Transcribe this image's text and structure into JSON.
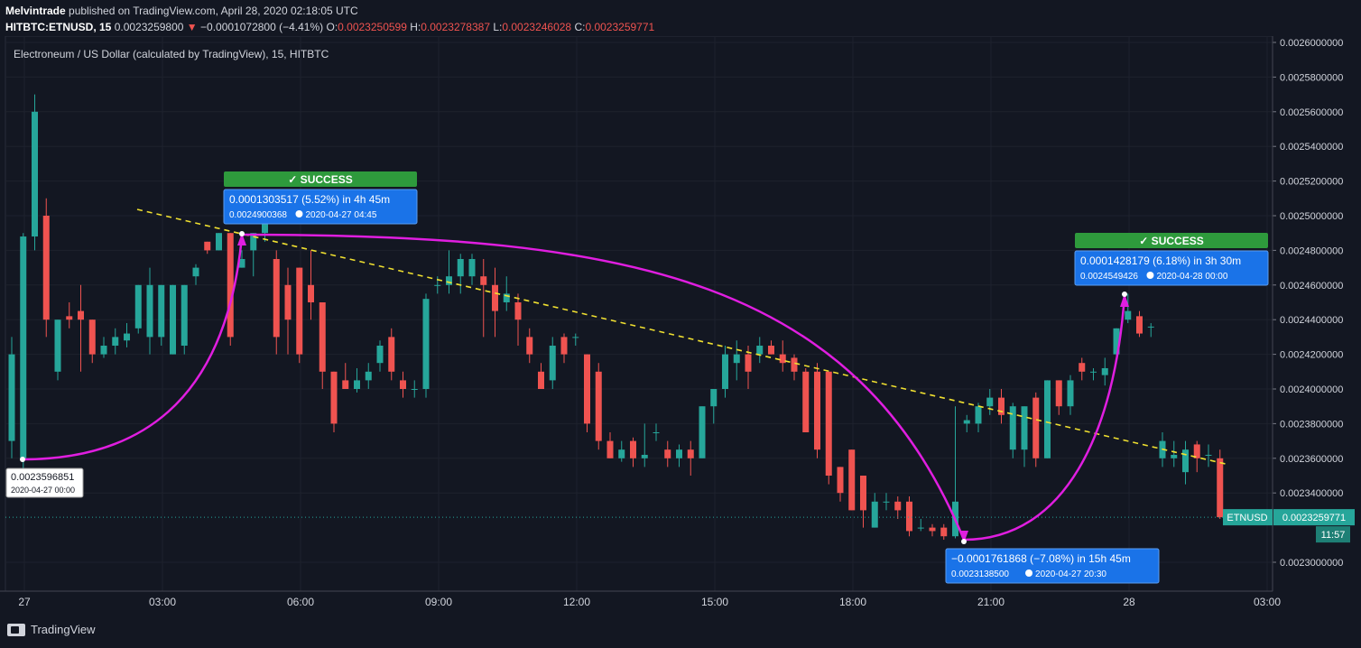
{
  "header": {
    "publisher": "Melvintrade",
    "published_text": " published on TradingView.com, April 28, 2020 02:18:05 UTC",
    "symbol": "HITBTC:ETNUSD, 15",
    "last": "0.0023259800",
    "change_arrow": "▼",
    "change": "−0.0001072800 (−4.41%)",
    "o_label": "O:",
    "o_value": "0.0023250599",
    "h_label": "H:",
    "h_value": "0.0023278387",
    "l_label": "L:",
    "l_value": "0.0023246028",
    "c_label": "C:",
    "c_value": "0.0023259771"
  },
  "chart_title": "Electroneum / US Dollar (calculated by TradingView), 15, HITBTC",
  "footer": {
    "logo_text": "TradingView"
  },
  "colors": {
    "background": "#131722",
    "up": "#26a69a",
    "down": "#ef5350",
    "curve": "#e01ee0",
    "trend": "#f0e030",
    "success": "#2e9a3c",
    "label_box": "#1a73e8"
  },
  "chart_data": {
    "type": "candlestick",
    "title": "Electroneum / US Dollar (calculated by TradingView), 15, HITBTC",
    "ylim": [
      0.00229,
      0.00261
    ],
    "y_ticks": [
      "0.0026000000",
      "0.0025800000",
      "0.0025600000",
      "0.0025400000",
      "0.0025200000",
      "0.0025000000",
      "0.0024800000",
      "0.0024600000",
      "0.0024400000",
      "0.0024200000",
      "0.0024000000",
      "0.0023800000",
      "0.0023600000",
      "0.0023400000",
      "0.0023000000"
    ],
    "y_tick_values": [
      0.0026,
      0.00258,
      0.00256,
      0.00254,
      0.00252,
      0.0025,
      0.00248,
      0.00246,
      0.00244,
      0.00242,
      0.0024,
      0.00238,
      0.00236,
      0.00234,
      0.0023
    ],
    "x_ticks": [
      "27",
      "03:00",
      "06:00",
      "09:00",
      "12:00",
      "15:00",
      "18:00",
      "21:00",
      "28",
      "03:00"
    ],
    "x_tick_hours": [
      0,
      3,
      6,
      9,
      12,
      15,
      18,
      21,
      24,
      27
    ],
    "last_price": {
      "label": "ETNUSD",
      "value": "0.0023259771",
      "price": 0.0023259771,
      "countdown": "11:57"
    },
    "candles": [
      [
        0.00237,
        0.00242,
        0.00243,
        0.00236
      ],
      [
        0.00236,
        0.002488,
        0.00249,
        0.00235
      ],
      [
        0.002488,
        0.00256,
        0.00257,
        0.00248
      ],
      [
        0.0025,
        0.00244,
        0.00251,
        0.00243
      ],
      [
        0.00241,
        0.00244,
        0.00244,
        0.002405
      ],
      [
        0.002442,
        0.00244,
        0.00245,
        0.002435
      ],
      [
        0.002445,
        0.00244,
        0.00246,
        0.00241
      ],
      [
        0.00244,
        0.00242,
        0.00244,
        0.002415
      ],
      [
        0.00242,
        0.002425,
        0.00243,
        0.002418
      ],
      [
        0.002425,
        0.00243,
        0.002435,
        0.00242
      ],
      [
        0.002428,
        0.002432,
        0.002438,
        0.002424
      ],
      [
        0.002435,
        0.00246,
        0.00246,
        0.002432
      ],
      [
        0.00243,
        0.00246,
        0.00247,
        0.00242
      ],
      [
        0.00243,
        0.00246,
        0.00246,
        0.002425
      ],
      [
        0.00242,
        0.00246,
        0.00246,
        0.00242
      ],
      [
        0.002425,
        0.00246,
        0.00246,
        0.00242
      ],
      [
        0.002465,
        0.00247,
        0.002472,
        0.00246
      ],
      [
        0.002485,
        0.00248,
        0.002485,
        0.002478
      ],
      [
        0.00248,
        0.00249,
        0.00249,
        0.00248
      ],
      [
        0.00249,
        0.00243,
        0.00249,
        0.002425
      ],
      [
        0.00247,
        0.002475,
        0.00248,
        0.00247
      ],
      [
        0.00248,
        0.00249,
        0.00249,
        0.002465
      ],
      [
        0.00249,
        0.0025,
        0.0025,
        0.002485
      ],
      [
        0.002475,
        0.00243,
        0.00248,
        0.00242
      ],
      [
        0.00246,
        0.00244,
        0.00247,
        0.00242
      ],
      [
        0.00247,
        0.00242,
        0.00247,
        0.002415
      ],
      [
        0.00246,
        0.00245,
        0.00248,
        0.00244
      ],
      [
        0.00245,
        0.00241,
        0.00245,
        0.0024
      ],
      [
        0.00241,
        0.00238,
        0.00241,
        0.002375
      ],
      [
        0.002405,
        0.0024,
        0.002415,
        0.0024
      ],
      [
        0.0024,
        0.002405,
        0.002412,
        0.002398
      ],
      [
        0.002405,
        0.00241,
        0.002415,
        0.0024
      ],
      [
        0.002415,
        0.002425,
        0.002428,
        0.00241
      ],
      [
        0.00243,
        0.00241,
        0.002435,
        0.002405
      ],
      [
        0.002405,
        0.0024,
        0.00241,
        0.002395
      ],
      [
        0.0024,
        0.0024,
        0.002405,
        0.002395
      ],
      [
        0.0024,
        0.002452,
        0.002455,
        0.002395
      ],
      [
        0.00246,
        0.00246,
        0.002465,
        0.002455
      ],
      [
        0.00246,
        0.002465,
        0.00248,
        0.002455
      ],
      [
        0.002465,
        0.002475,
        0.002478,
        0.002455
      ],
      [
        0.002465,
        0.002475,
        0.002478,
        0.00246
      ],
      [
        0.002465,
        0.00246,
        0.002475,
        0.00243
      ],
      [
        0.00246,
        0.002445,
        0.00247,
        0.00243
      ],
      [
        0.00245,
        0.002455,
        0.002465,
        0.002445
      ],
      [
        0.00245,
        0.00244,
        0.002455,
        0.002425
      ],
      [
        0.00243,
        0.00242,
        0.002435,
        0.002415
      ],
      [
        0.00241,
        0.0024,
        0.002415,
        0.0024
      ],
      [
        0.002405,
        0.002425,
        0.00243,
        0.0024
      ],
      [
        0.00243,
        0.00242,
        0.002432,
        0.002415
      ],
      [
        0.00243,
        0.00243,
        0.002432,
        0.002425
      ],
      [
        0.00242,
        0.00238,
        0.00242,
        0.002375
      ],
      [
        0.00241,
        0.00237,
        0.002415,
        0.002365
      ],
      [
        0.00237,
        0.00236,
        0.002375,
        0.00236
      ],
      [
        0.00236,
        0.002365,
        0.00237,
        0.002358
      ],
      [
        0.00237,
        0.00236,
        0.002372,
        0.002355
      ],
      [
        0.00236,
        0.002362,
        0.00238,
        0.002355
      ],
      [
        0.002375,
        0.002375,
        0.00238,
        0.00237
      ],
      [
        0.002365,
        0.00236,
        0.00237,
        0.002355
      ],
      [
        0.00236,
        0.002365,
        0.002368,
        0.002355
      ],
      [
        0.002365,
        0.00236,
        0.00237,
        0.00235
      ],
      [
        0.00236,
        0.00239,
        0.00239,
        0.00236
      ],
      [
        0.00239,
        0.0024,
        0.0024,
        0.00238
      ],
      [
        0.0024,
        0.00242,
        0.002425,
        0.002395
      ],
      [
        0.002415,
        0.00242,
        0.002428,
        0.002405
      ],
      [
        0.00242,
        0.00241,
        0.002425,
        0.0024
      ],
      [
        0.00242,
        0.002425,
        0.00243,
        0.002415
      ],
      [
        0.002425,
        0.00242,
        0.002428,
        0.00242
      ],
      [
        0.00242,
        0.002415,
        0.002428,
        0.00241
      ],
      [
        0.002418,
        0.00241,
        0.00242,
        0.002405
      ],
      [
        0.00241,
        0.002375,
        0.002412,
        0.002375
      ],
      [
        0.00241,
        0.002365,
        0.002415,
        0.00236
      ],
      [
        0.00241,
        0.00235,
        0.00241,
        0.002345
      ],
      [
        0.002355,
        0.00234,
        0.002355,
        0.002335
      ],
      [
        0.002365,
        0.00233,
        0.002365,
        0.00233
      ],
      [
        0.00235,
        0.00233,
        0.00235,
        0.00232
      ],
      [
        0.00232,
        0.002335,
        0.00234,
        0.00232
      ],
      [
        0.002335,
        0.002335,
        0.00234,
        0.00233
      ],
      [
        0.002335,
        0.00233,
        0.002338,
        0.002325
      ],
      [
        0.002335,
        0.002318,
        0.002338,
        0.002315
      ],
      [
        0.00232,
        0.00232,
        0.002325,
        0.002318
      ],
      [
        0.00232,
        0.002318,
        0.002322,
        0.002315
      ],
      [
        0.00232,
        0.002315,
        0.002322,
        0.002313
      ],
      [
        0.002315,
        0.002335,
        0.00239,
        0.0023138
      ],
      [
        0.00238,
        0.002382,
        0.002385,
        0.002375
      ],
      [
        0.00238,
        0.00239,
        0.002392,
        0.002375
      ],
      [
        0.00239,
        0.002395,
        0.0024,
        0.002385
      ],
      [
        0.002395,
        0.002385,
        0.0024,
        0.00238
      ],
      [
        0.002365,
        0.00239,
        0.002392,
        0.00236
      ],
      [
        0.002365,
        0.00239,
        0.00239,
        0.002355
      ],
      [
        0.002395,
        0.00236,
        0.002398,
        0.002355
      ],
      [
        0.00236,
        0.002405,
        0.002405,
        0.00236
      ],
      [
        0.002405,
        0.00239,
        0.002405,
        0.002385
      ],
      [
        0.00239,
        0.002405,
        0.002408,
        0.002385
      ],
      [
        0.002415,
        0.00241,
        0.002418,
        0.002405
      ],
      [
        0.00241,
        0.00241,
        0.002412,
        0.002405
      ],
      [
        0.002408,
        0.002412,
        0.002418,
        0.002402
      ],
      [
        0.00242,
        0.002435,
        0.002435,
        0.002418
      ],
      [
        0.00244,
        0.002445,
        0.002455,
        0.002438
      ],
      [
        0.002442,
        0.002432,
        0.002445,
        0.00243
      ],
      [
        0.002436,
        0.002436,
        0.002438,
        0.00243
      ],
      [
        0.00236,
        0.00237,
        0.002375,
        0.002355
      ],
      [
        0.00236,
        0.002362,
        0.00237,
        0.002355
      ],
      [
        0.002352,
        0.002365,
        0.00237,
        0.002345
      ],
      [
        0.002368,
        0.00236,
        0.00237,
        0.002352
      ],
      [
        0.002362,
        0.002362,
        0.002368,
        0.002355
      ],
      [
        0.00236,
        0.002326,
        0.002365,
        0.002325
      ]
    ],
    "annotations": [
      {
        "kind": "success",
        "label": "✓ SUCCESS",
        "line1": "0.0001303517 (5.52%) in 4h 45m",
        "line2_price": "0.0024900368",
        "line2_date": "2020-04-27  04:45"
      },
      {
        "kind": "success",
        "label": "✓ SUCCESS",
        "line1": "0.0001428179 (6.18%) in 3h 30m",
        "line2_price": "0.0024549426",
        "line2_date": "2020-04-28  00:00"
      },
      {
        "kind": "measure",
        "line1": "−0.0001761868 (−7.08%) in 15h 45m",
        "line2_price": "0.0023138500",
        "line2_date": "2020-04-27  20:30"
      },
      {
        "kind": "point",
        "line1": "0.0023596851",
        "line2": "2020-04-27 00:00"
      }
    ]
  }
}
